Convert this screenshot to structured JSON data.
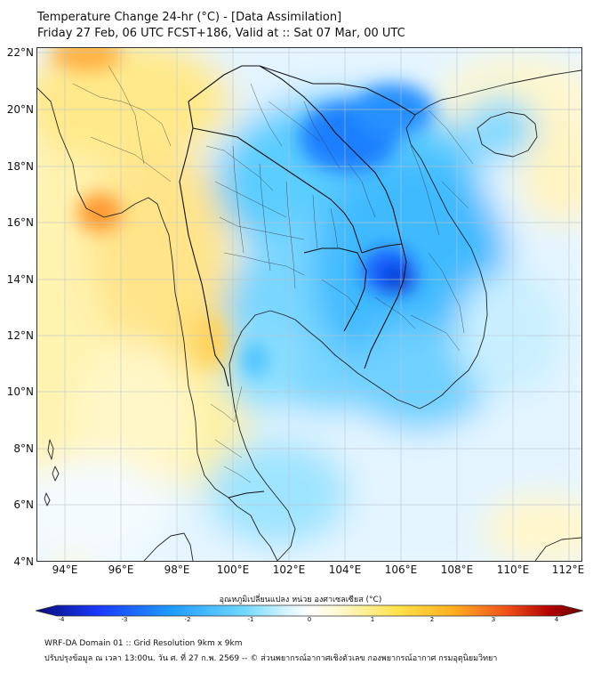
{
  "title": {
    "line1": "Temperature Change 24-hr (°C) - [Data Assimilation]",
    "line2": "Friday 27 Feb, 06 UTC FCST+186, Valid at :: Sat 07 Mar, 00 UTC"
  },
  "axes": {
    "latitudes": [
      "22°N",
      "20°N",
      "18°N",
      "16°N",
      "14°N",
      "12°N",
      "10°N",
      "8°N",
      "6°N",
      "4°N"
    ],
    "longitudes": [
      "94°E",
      "96°E",
      "98°E",
      "100°E",
      "102°E",
      "104°E",
      "106°E",
      "108°E",
      "110°E",
      "112°E"
    ]
  },
  "colorbar": {
    "caption": "อุณหภูมิเปลี่ยนแปลง หน่วย องศาเซลเซียส (°C)",
    "labels": [
      "-4",
      "-3",
      "-2",
      "-1",
      "0",
      "1",
      "2",
      "3",
      "4"
    ],
    "colors": {
      "min": "#0b0b7a",
      "mid_cold": "#2aa9ff",
      "neutral": "#ffffff",
      "mid_warm": "#ffe24a",
      "max": "#6a0000"
    }
  },
  "footer": {
    "line1": "WRF-DA Domain 01 :: Grid Resolution 9km x 9km",
    "line2": "ปรับปรุงข้อมูล ณ เวลา 13:00น. วัน ศ. ที่ 27 ก.พ. 2569 -- © ส่วนพยากรณ์อากาศเชิงตัวเลข กองพยากรณ์อากาศ กรมอุตุนิยมวิทยา"
  },
  "map_features": [
    "land-sea-outline",
    "country-borders",
    "province-borders",
    "graticule"
  ]
}
